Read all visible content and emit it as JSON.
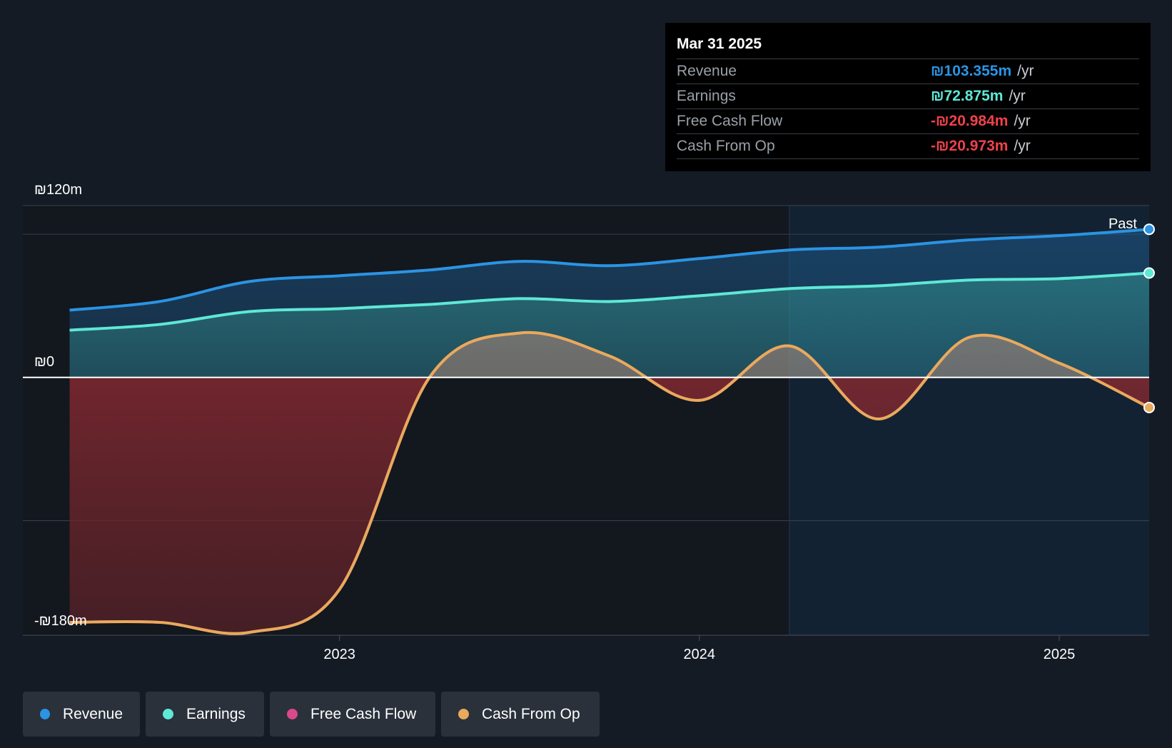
{
  "tooltip": {
    "date": "Mar 31 2025",
    "rows": [
      {
        "name": "Revenue",
        "value": "₪103.355m",
        "unit": "/yr",
        "color": "#2b94e3"
      },
      {
        "name": "Earnings",
        "value": "₪72.875m",
        "unit": "/yr",
        "color": "#5ee8d6"
      },
      {
        "name": "Free Cash Flow",
        "value": "-₪20.984m",
        "unit": "/yr",
        "color": "#f0414b"
      },
      {
        "name": "Cash From Op",
        "value": "-₪20.973m",
        "unit": "/yr",
        "color": "#f0414b"
      }
    ]
  },
  "legend": [
    {
      "label": "Revenue",
      "color": "#2b94e3"
    },
    {
      "label": "Earnings",
      "color": "#5ee8d6"
    },
    {
      "label": "Free Cash Flow",
      "color": "#d9498b"
    },
    {
      "label": "Cash From Op",
      "color": "#e8aa5c"
    }
  ],
  "past_label": "Past",
  "chart_data": {
    "type": "area",
    "y_tick_labels": [
      "₪120m",
      "₪0",
      "-₪180m"
    ],
    "x_tick_labels": [
      "2023",
      "2024",
      "2025"
    ],
    "x_ticks": [
      2023.0,
      2024.0,
      2025.0
    ],
    "xlim": [
      2022.12,
      2025.25
    ],
    "ylim": [
      -180,
      120
    ],
    "x": [
      2022.25,
      2022.5,
      2022.75,
      2023.0,
      2023.25,
      2023.5,
      2023.75,
      2024.0,
      2024.25,
      2024.5,
      2024.75,
      2025.0,
      2025.25
    ],
    "series": [
      {
        "name": "Revenue",
        "color": "#2b94e3",
        "values": [
          47,
          53,
          67,
          71,
          75,
          81,
          78,
          83,
          89,
          91,
          96,
          99,
          103.4
        ]
      },
      {
        "name": "Earnings",
        "color": "#5ee8d6",
        "values": [
          33,
          37,
          46,
          48,
          51,
          55,
          53,
          57,
          62,
          64,
          68,
          69,
          72.9
        ]
      },
      {
        "name": "Free Cash Flow",
        "color": "#d9498b",
        "values": [
          -171,
          -171,
          -178,
          -148,
          0,
          31,
          15,
          -16,
          22,
          -29,
          28,
          10,
          -21.0
        ]
      },
      {
        "name": "Cash From Op",
        "color": "#e8aa5c",
        "values": [
          -171,
          -171,
          -178,
          -148,
          0,
          31,
          15,
          -16,
          22,
          -29,
          28,
          10,
          -21.0
        ]
      }
    ],
    "grid": true,
    "legend_position": "bottom-left"
  }
}
